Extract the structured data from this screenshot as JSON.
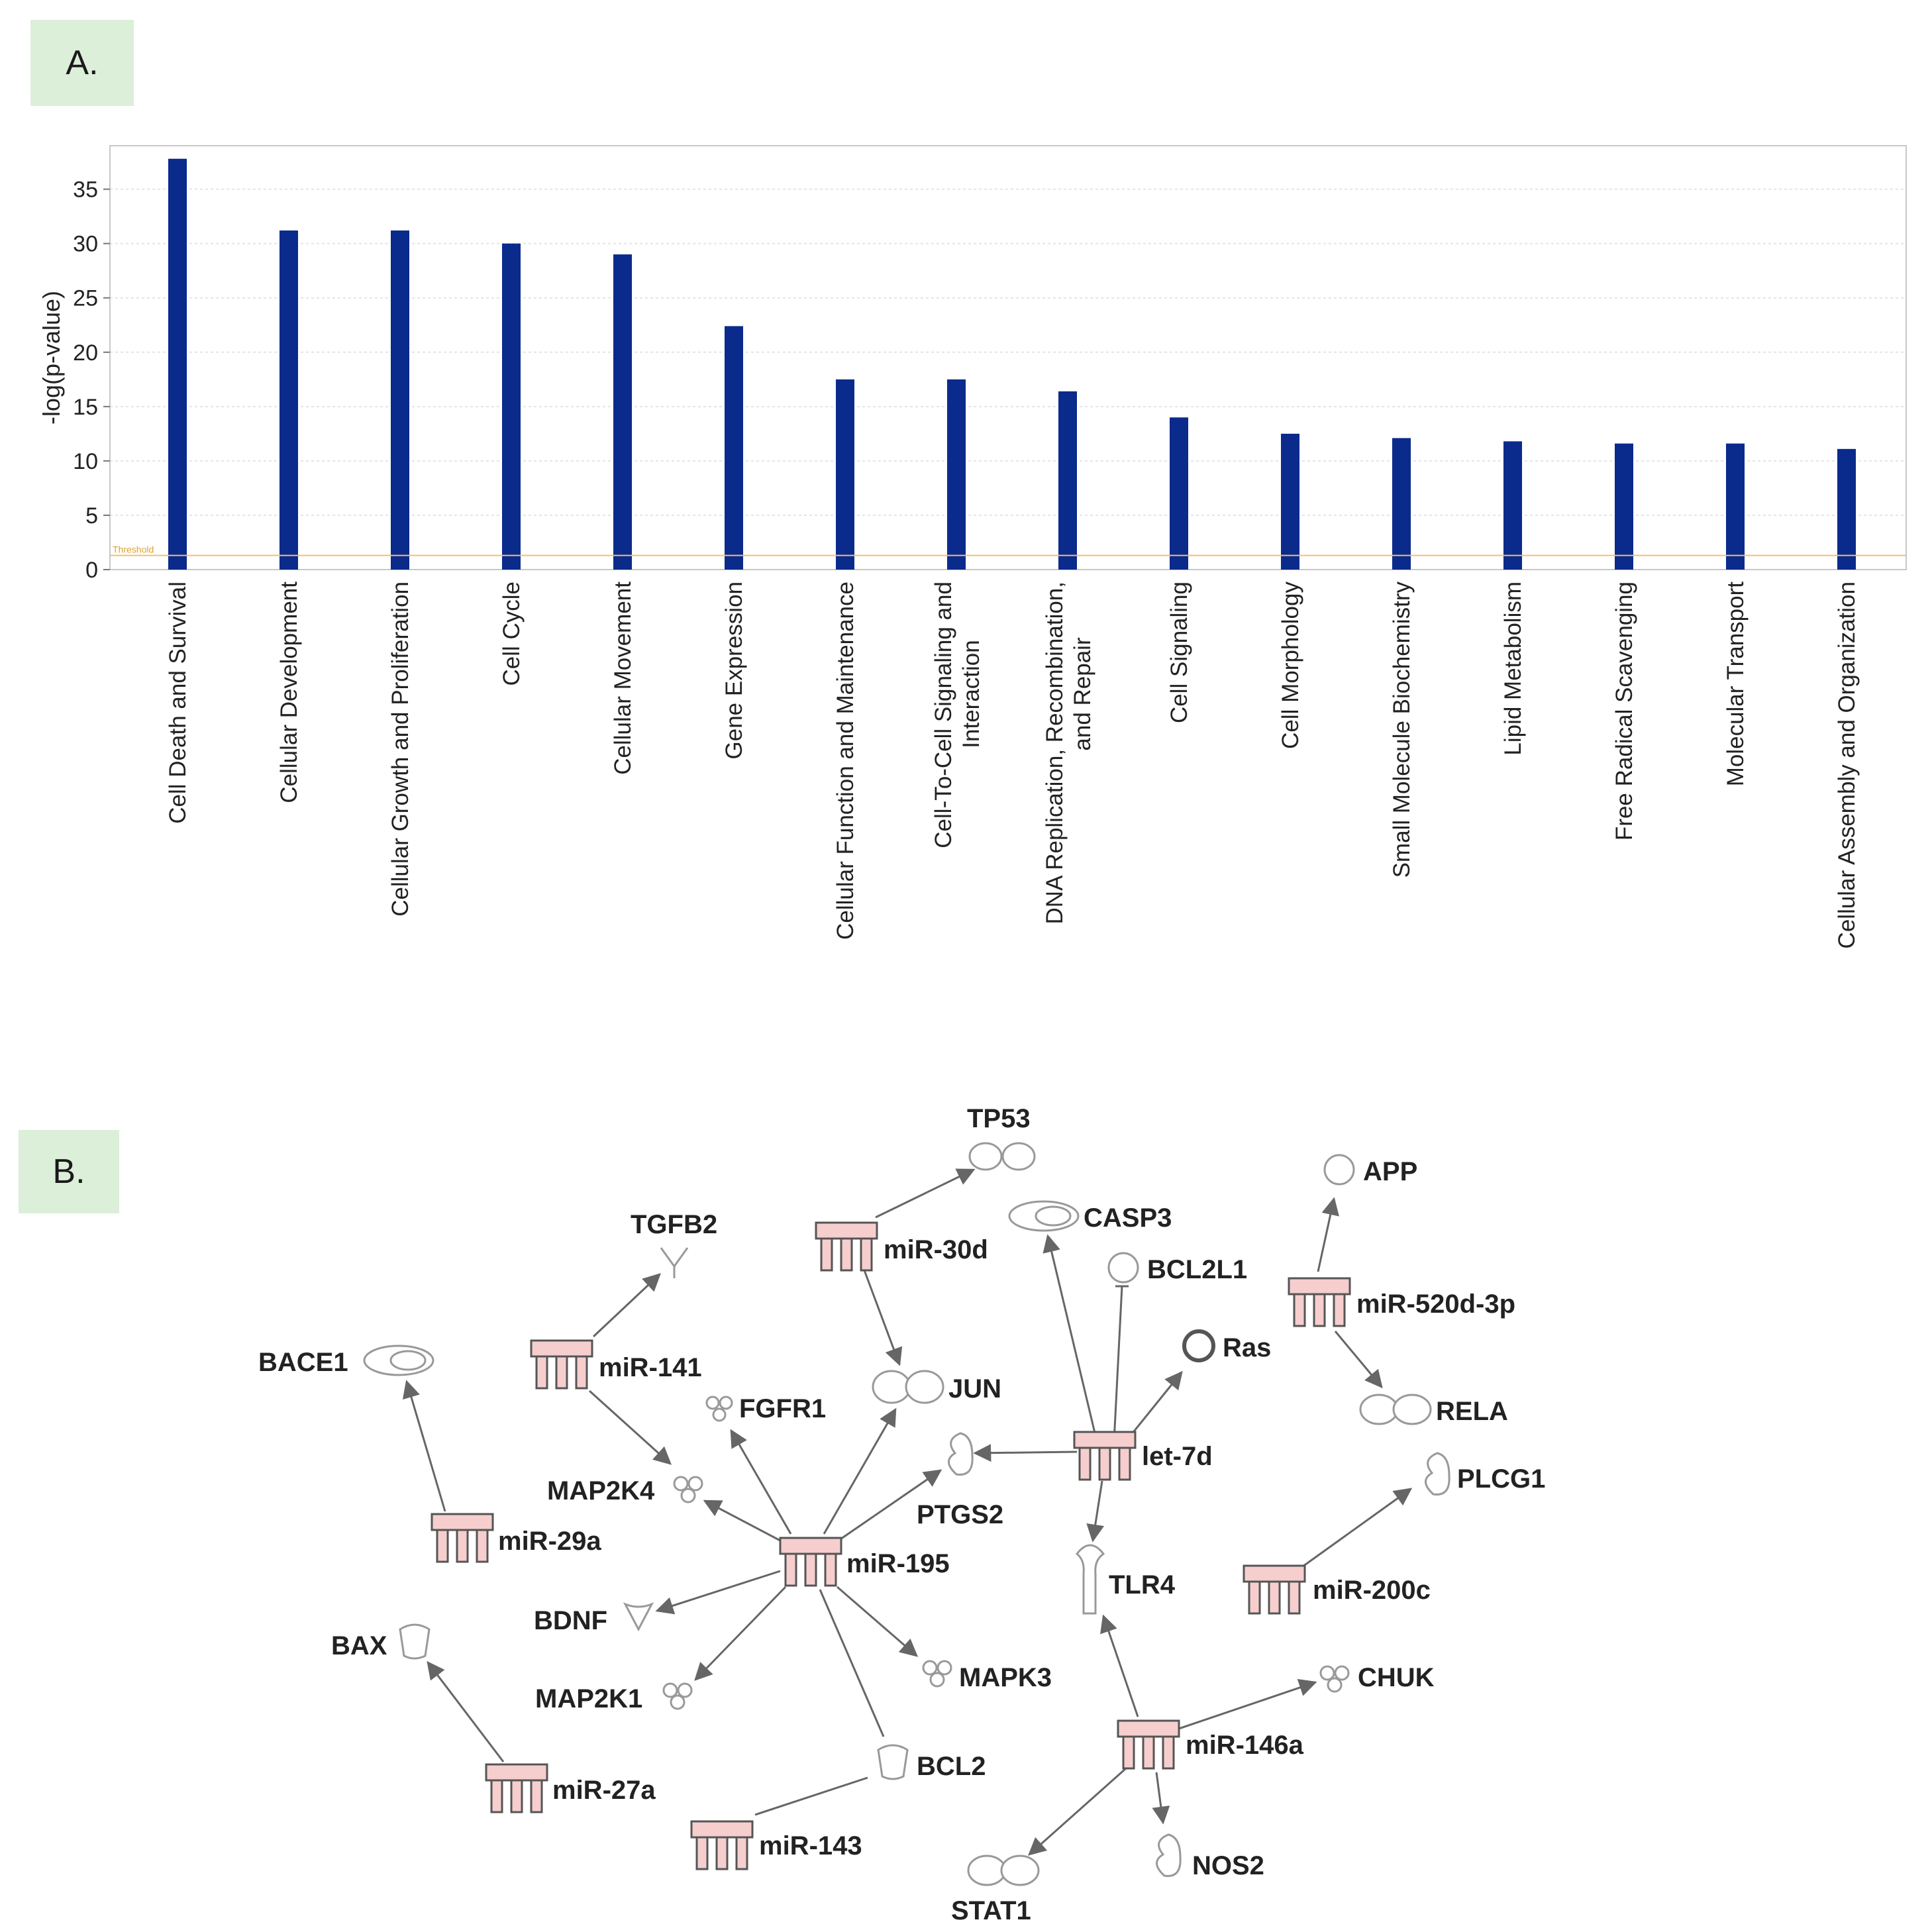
{
  "panel_a": {
    "label": "A."
  },
  "panel_b": {
    "label": "B."
  },
  "chart_data": {
    "type": "bar",
    "ylabel": "-log(p-value)",
    "xlabel": "",
    "ylim": [
      0,
      39
    ],
    "yticks": [
      0,
      5,
      10,
      15,
      20,
      25,
      30,
      35
    ],
    "threshold": {
      "label": "Threshold",
      "value": 1.3
    },
    "grid": true,
    "colors": {
      "bar": "#0a2a8c",
      "threshold": "#f0c070",
      "grid": "#e4e4e4"
    },
    "categories": [
      [
        "Cell Death and Survival"
      ],
      [
        "Cellular Development"
      ],
      [
        "Cellular Growth and Proliferation"
      ],
      [
        "Cell Cycle"
      ],
      [
        "Cellular Movement"
      ],
      [
        "Gene Expression"
      ],
      [
        "Cellular Function and Maintenance"
      ],
      [
        "Cell-To-Cell Signaling and",
        "Interaction"
      ],
      [
        "DNA Replication, Recombination,",
        "and Repair"
      ],
      [
        "Cell Signaling"
      ],
      [
        "Cell Morphology"
      ],
      [
        "Small Molecule Biochemistry"
      ],
      [
        "Lipid Metabolism"
      ],
      [
        "Free Radical Scavenging"
      ],
      [
        "Molecular Transport"
      ],
      [
        "Cellular Assembly and Organization"
      ]
    ],
    "values": [
      37.8,
      31.2,
      31.2,
      30.0,
      29.0,
      22.4,
      17.5,
      17.5,
      16.4,
      14.0,
      12.5,
      12.1,
      11.8,
      11.6,
      11.6,
      11.1
    ]
  },
  "network": {
    "mirnas": [
      "miR-30d",
      "miR-141",
      "miR-520d-3p",
      "miR-29a",
      "let-7d",
      "miR-195",
      "miR-200c",
      "miR-27a",
      "miR-146a",
      "miR-143"
    ],
    "genes": [
      "TP53",
      "APP",
      "TGFB2",
      "CASP3",
      "BCL2L1",
      "BACE1",
      "Ras",
      "FGFR1",
      "JUN",
      "RELA",
      "MAP2K4",
      "PTGS2",
      "PLCG1",
      "TLR4",
      "BDNF",
      "BAX",
      "MAPK3",
      "CHUK",
      "MAP2K1",
      "BCL2",
      "NOS2",
      "STAT1"
    ]
  }
}
